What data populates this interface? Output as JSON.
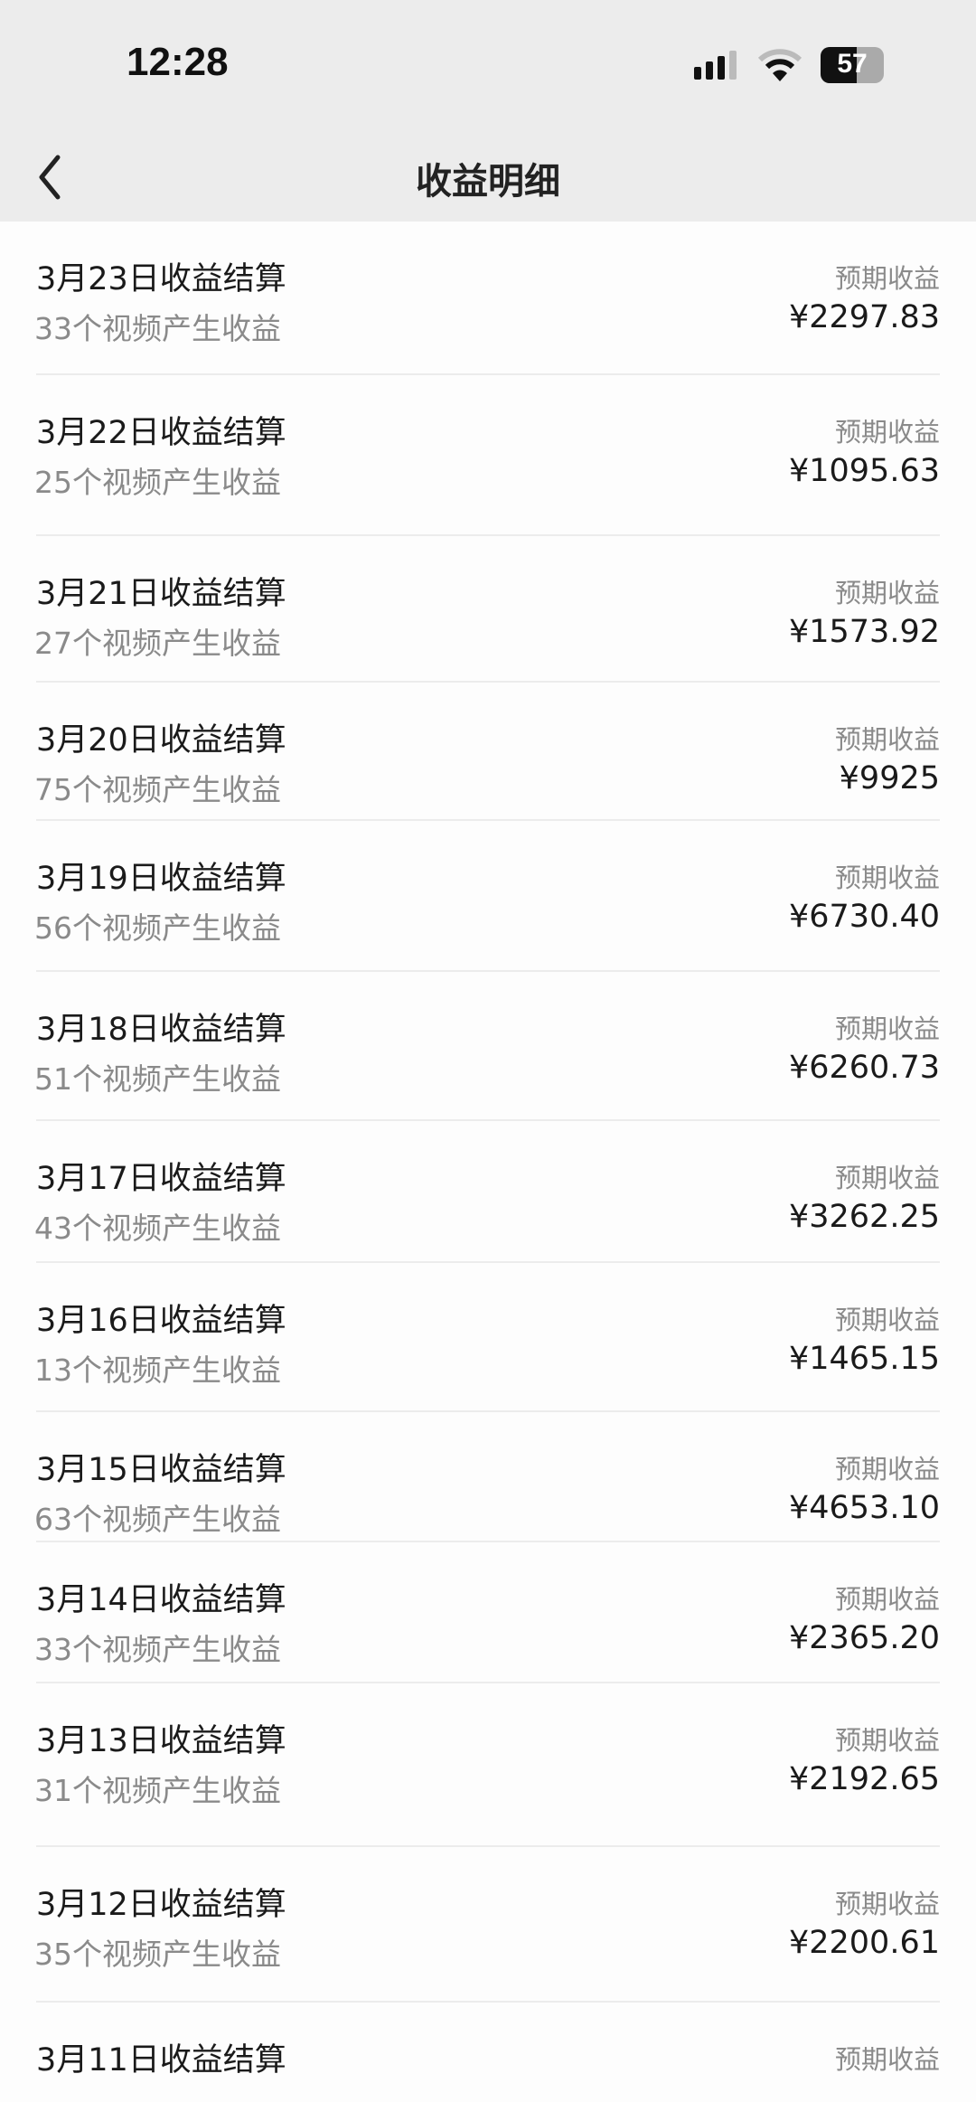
{
  "status_bar": {
    "time": "12:28",
    "battery": "57",
    "battery_level": 0.57
  },
  "header": {
    "title": "收益明细",
    "back_icon": "chevron-left-icon"
  },
  "items": [
    {
      "title": "3月23日收益结算",
      "subtitle": "33个视频产生收益",
      "label": "预期收益",
      "amount": "¥2297.83"
    },
    {
      "title": "3月22日收益结算",
      "subtitle": "25个视频产生收益",
      "label": "预期收益",
      "amount": "¥1095.63"
    },
    {
      "title": "3月21日收益结算",
      "subtitle": "27个视频产生收益",
      "label": "预期收益",
      "amount": "¥1573.92"
    },
    {
      "title": "3月20日收益结算",
      "subtitle": "75个视频产生收益",
      "label": "预期收益",
      "amount": "¥9925"
    },
    {
      "title": "3月19日收益结算",
      "subtitle": "56个视频产生收益",
      "label": "预期收益",
      "amount": "¥6730.40"
    },
    {
      "title": "3月18日收益结算",
      "subtitle": "51个视频产生收益",
      "label": "预期收益",
      "amount": "¥6260.73"
    },
    {
      "title": "3月17日收益结算",
      "subtitle": "43个视频产生收益",
      "label": "预期收益",
      "amount": "¥3262.25"
    },
    {
      "title": "3月16日收益结算",
      "subtitle": "13个视频产生收益",
      "label": "预期收益",
      "amount": "¥1465.15"
    },
    {
      "title": "3月15日收益结算",
      "subtitle": "63个视频产生收益",
      "label": "预期收益",
      "amount": "¥4653.10"
    },
    {
      "title": "3月14日收益结算",
      "subtitle": "33个视频产生收益",
      "label": "预期收益",
      "amount": "¥2365.20"
    },
    {
      "title": "3月13日收益结算",
      "subtitle": "31个视频产生收益",
      "label": "预期收益",
      "amount": "¥2192.65"
    },
    {
      "title": "3月12日收益结算",
      "subtitle": "35个视频产生收益",
      "label": "预期收益",
      "amount": "¥2200.61"
    },
    {
      "title": "3月11日收益结算",
      "label": "预期收益"
    }
  ]
}
